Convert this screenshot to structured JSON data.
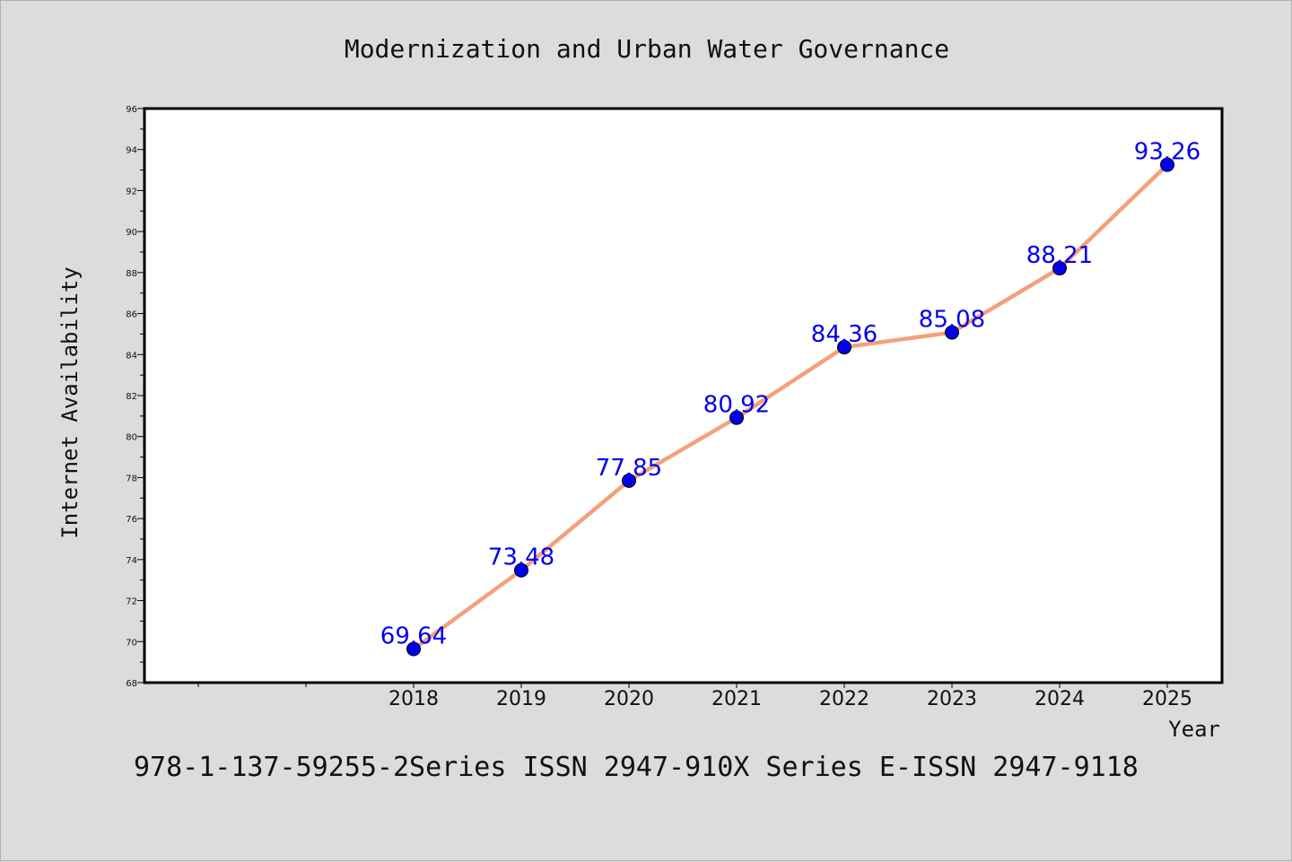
{
  "chart_data": {
    "type": "line",
    "title": "Modernization and Urban Water Governance",
    "xlabel": "Year",
    "ylabel": "Internet Availability",
    "categories": [
      "2018",
      "2019",
      "2020",
      "2021",
      "2022",
      "2023",
      "2024",
      "2025"
    ],
    "series": [
      {
        "values": [
          69.64,
          73.48,
          77.85,
          80.92,
          84.36,
          85.08,
          88.21,
          93.26
        ]
      }
    ],
    "data_labels": [
      "69.64",
      "73.48",
      "77.85",
      "80.92",
      "84.36",
      "85.08",
      "88.21",
      "93.26"
    ],
    "ylim": [
      68,
      96
    ],
    "yticks": [
      "68",
      "70",
      "72",
      "74",
      "76",
      "78",
      "80",
      "82",
      "84",
      "86",
      "88",
      "90",
      "92",
      "94",
      "96"
    ],
    "grid": false,
    "line_color": "#f4a07c",
    "marker_color": "#0000ee",
    "label_color": "#0000ee",
    "footer": "978-1-137-59255-2Series ISSN 2947-910X Series E-ISSN 2947-9118"
  }
}
